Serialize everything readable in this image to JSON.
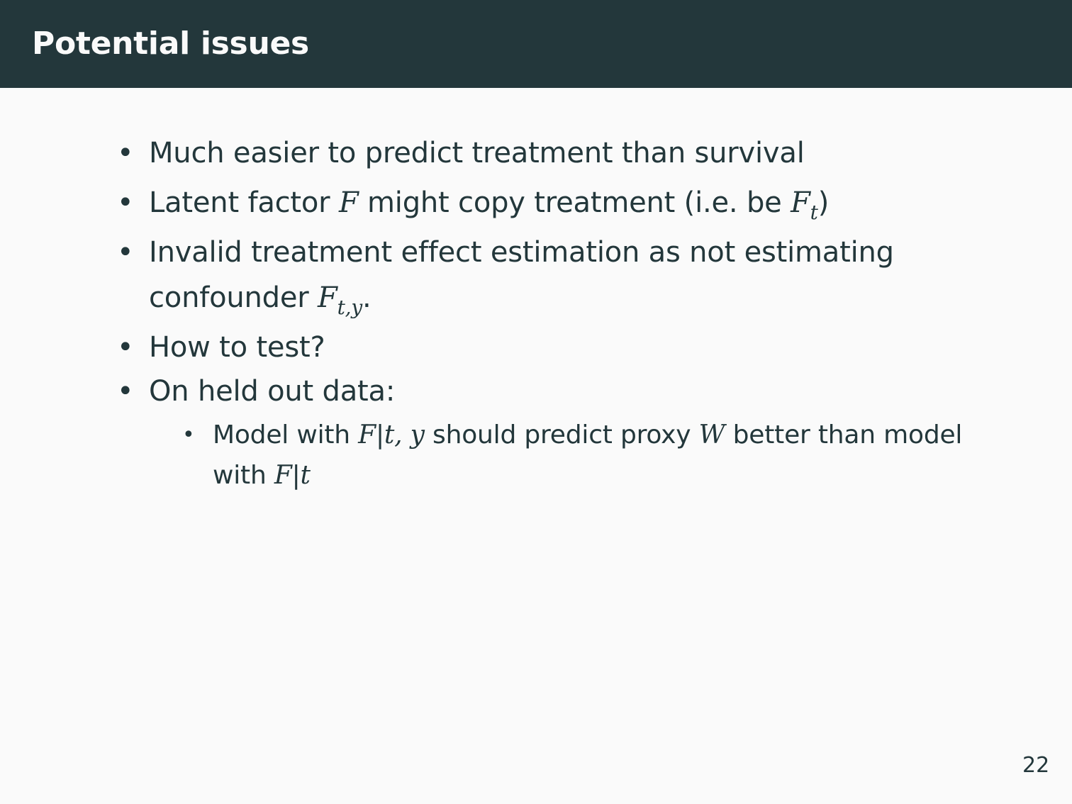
{
  "slide": {
    "title": "Potential issues",
    "page_number": "22"
  },
  "bullets": [
    {
      "text": "Much easier to predict treatment than survival"
    },
    {
      "pre": "Latent factor ",
      "m1": "F",
      "mid": " might copy treatment (i.e. be ",
      "m2": "F",
      "sub2": "t",
      "post": ")"
    },
    {
      "line1": "Invalid treatment effect estimation as not estimating",
      "line2_pre": "confounder ",
      "m": "F",
      "sub": "t,y",
      "line2_post": "."
    },
    {
      "text": "How to test?"
    },
    {
      "text": "On held out data:"
    }
  ],
  "sub_bullets": [
    {
      "pre": "Model with ",
      "m1": "F",
      "bar1": "|",
      "m2": "t, y",
      "mid": " should predict proxy ",
      "m3": "W",
      "post": " better than model",
      "line2_pre": "with ",
      "m4": "F",
      "bar2": "|",
      "m5": "t"
    }
  ]
}
